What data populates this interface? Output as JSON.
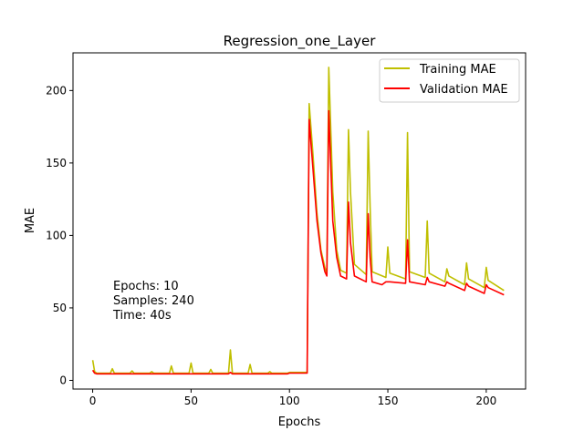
{
  "chart_data": {
    "type": "line",
    "title": "Regression_one_Layer",
    "xlabel": "Epochs",
    "ylabel": "MAE",
    "xlim": [
      -10,
      220
    ],
    "ylim": [
      -6,
      226
    ],
    "x_ticks": [
      0,
      50,
      100,
      150,
      200
    ],
    "y_ticks": [
      0,
      50,
      100,
      150,
      200
    ],
    "grid": false,
    "legend_position": "top-right",
    "annotation": [
      "Epochs: 10",
      "Samples: 240",
      "Time: 40s"
    ],
    "series": [
      {
        "name": "Training MAE",
        "color": "#bfbf00",
        "points": [
          [
            0,
            14
          ],
          [
            1,
            6
          ],
          [
            2,
            5
          ],
          [
            9,
            5
          ],
          [
            10,
            8
          ],
          [
            11,
            5
          ],
          [
            19,
            5
          ],
          [
            20,
            6.5
          ],
          [
            21,
            5
          ],
          [
            29,
            5
          ],
          [
            30,
            6
          ],
          [
            31,
            5
          ],
          [
            39,
            5
          ],
          [
            40,
            10
          ],
          [
            41,
            5
          ],
          [
            49,
            5
          ],
          [
            50,
            12
          ],
          [
            51,
            5
          ],
          [
            59,
            5
          ],
          [
            60,
            7.5
          ],
          [
            61,
            5
          ],
          [
            69,
            5
          ],
          [
            70,
            21
          ],
          [
            71,
            5
          ],
          [
            79,
            5
          ],
          [
            80,
            11
          ],
          [
            81,
            5
          ],
          [
            89,
            5
          ],
          [
            90,
            6
          ],
          [
            91,
            5
          ],
          [
            99,
            5
          ],
          [
            100,
            5.5
          ],
          [
            109,
            5.5
          ],
          [
            110,
            191
          ],
          [
            112,
            155
          ],
          [
            114,
            115
          ],
          [
            116,
            90
          ],
          [
            118,
            78
          ],
          [
            119,
            74
          ],
          [
            120,
            216
          ],
          [
            122,
            130
          ],
          [
            124,
            90
          ],
          [
            126,
            76
          ],
          [
            129,
            74
          ],
          [
            130,
            173
          ],
          [
            131,
            130
          ],
          [
            133,
            80
          ],
          [
            139,
            73
          ],
          [
            140,
            172
          ],
          [
            141,
            120
          ],
          [
            142,
            75
          ],
          [
            149,
            71
          ],
          [
            150,
            92
          ],
          [
            151,
            74
          ],
          [
            159,
            70
          ],
          [
            160,
            171
          ],
          [
            161,
            75
          ],
          [
            169,
            71
          ],
          [
            170,
            110
          ],
          [
            171,
            74
          ],
          [
            179,
            68
          ],
          [
            180,
            77
          ],
          [
            181,
            72
          ],
          [
            189,
            66
          ],
          [
            190,
            81
          ],
          [
            191,
            70
          ],
          [
            199,
            64
          ],
          [
            200,
            78
          ],
          [
            201,
            69
          ],
          [
            209,
            62
          ]
        ]
      },
      {
        "name": "Validation MAE",
        "color": "#ff0000",
        "points": [
          [
            0,
            7
          ],
          [
            1,
            5
          ],
          [
            2,
            4.5
          ],
          [
            69,
            4.5
          ],
          [
            70,
            5.5
          ],
          [
            71,
            4.5
          ],
          [
            99,
            4.5
          ],
          [
            100,
            5
          ],
          [
            109,
            5
          ],
          [
            110,
            180
          ],
          [
            112,
            145
          ],
          [
            114,
            110
          ],
          [
            116,
            88
          ],
          [
            118,
            75
          ],
          [
            119,
            72
          ],
          [
            120,
            186
          ],
          [
            122,
            110
          ],
          [
            124,
            85
          ],
          [
            126,
            72
          ],
          [
            129,
            70
          ],
          [
            130,
            123
          ],
          [
            131,
            95
          ],
          [
            133,
            72
          ],
          [
            139,
            68
          ],
          [
            140,
            115
          ],
          [
            141,
            85
          ],
          [
            142,
            68
          ],
          [
            147,
            66
          ],
          [
            149,
            68
          ],
          [
            151,
            68
          ],
          [
            159,
            67
          ],
          [
            160,
            97
          ],
          [
            161,
            68
          ],
          [
            169,
            66
          ],
          [
            170,
            71
          ],
          [
            171,
            68
          ],
          [
            179,
            65
          ],
          [
            180,
            68
          ],
          [
            181,
            67
          ],
          [
            189,
            62
          ],
          [
            190,
            67
          ],
          [
            191,
            65
          ],
          [
            199,
            60
          ],
          [
            200,
            66
          ],
          [
            201,
            64
          ],
          [
            209,
            59
          ]
        ]
      }
    ]
  }
}
